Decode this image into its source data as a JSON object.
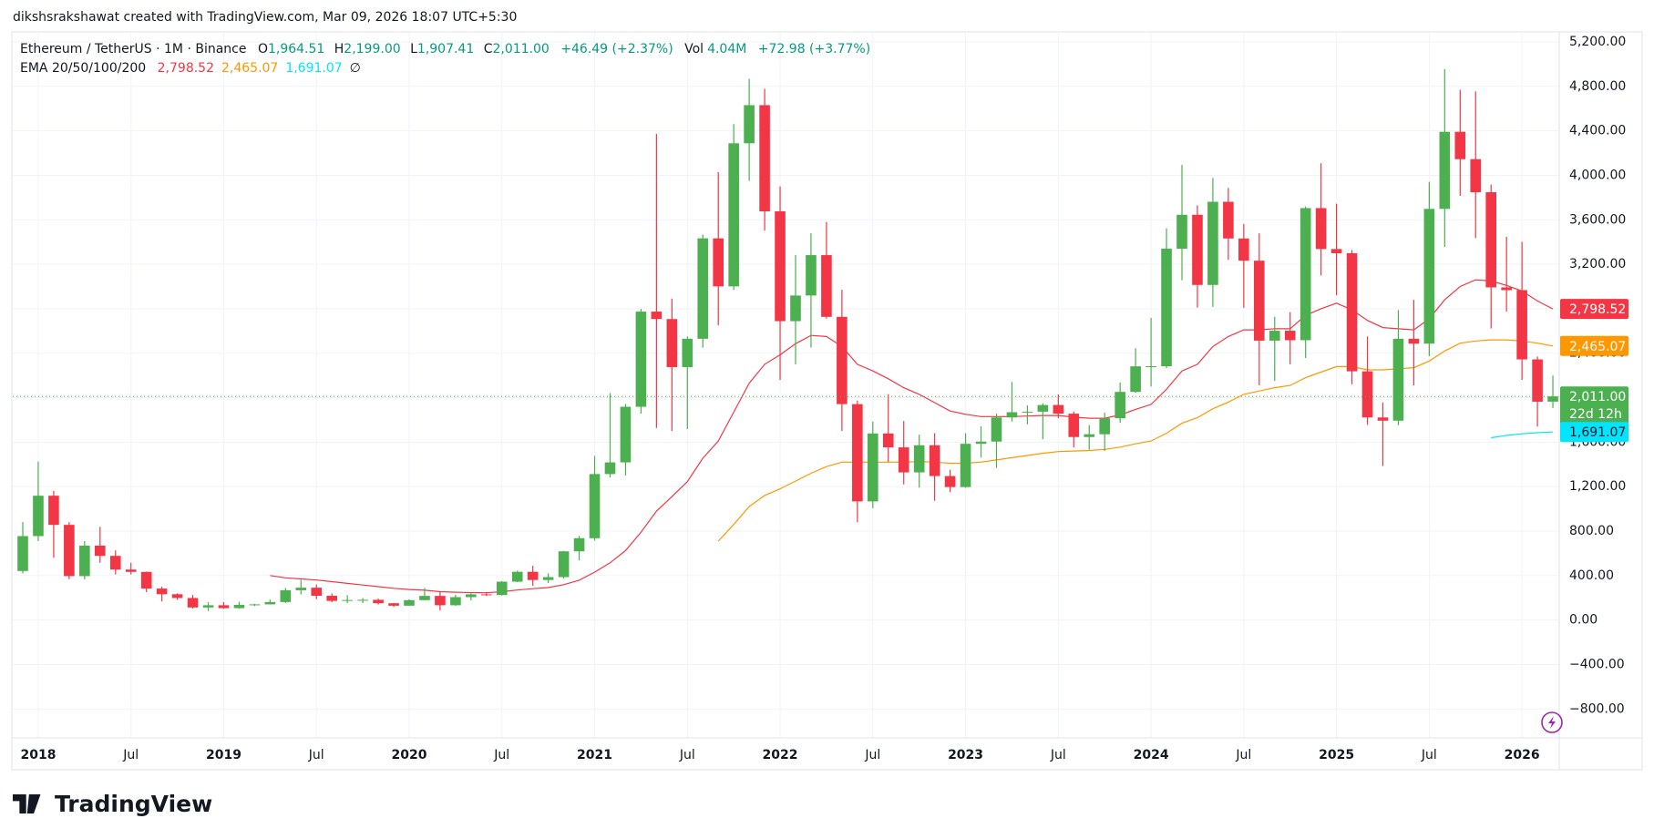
{
  "header": {
    "watermark": "dikshsrakshawat created with TradingView.com, Mar 09, 2026 18:07 UTC+5:30",
    "symbol": "Ethereum / TetherUS · 1M · Binance",
    "o_label": "O",
    "o": "1,964.51",
    "h_label": "H",
    "h": "2,199.00",
    "l_label": "L",
    "l": "1,907.41",
    "c_label": "C",
    "c": "2,011.00",
    "change": "+46.49 (+2.37%)",
    "vol_label": "Vol",
    "vol": "4.04M",
    "vol_change": "+72.98 (+3.77%)",
    "ema_label": "EMA 20/50/100/200",
    "ema200": "∅"
  },
  "footer": {
    "brand": "TradingView"
  },
  "chart_data": {
    "type": "candlestick",
    "categories": [
      "2017-12",
      "2018-01",
      "2018-02",
      "2018-03",
      "2018-04",
      "2018-05",
      "2018-06",
      "2018-07",
      "2018-08",
      "2018-09",
      "2018-10",
      "2018-11",
      "2018-12",
      "2019-01",
      "2019-02",
      "2019-03",
      "2019-04",
      "2019-05",
      "2019-06",
      "2019-07",
      "2019-08",
      "2019-09",
      "2019-10",
      "2019-11",
      "2019-12",
      "2020-01",
      "2020-02",
      "2020-03",
      "2020-04",
      "2020-05",
      "2020-06",
      "2020-07",
      "2020-08",
      "2020-09",
      "2020-10",
      "2020-11",
      "2020-12",
      "2021-01",
      "2021-02",
      "2021-03",
      "2021-04",
      "2021-05",
      "2021-06",
      "2021-07",
      "2021-08",
      "2021-09",
      "2021-10",
      "2021-11",
      "2021-12",
      "2022-01",
      "2022-02",
      "2022-03",
      "2022-04",
      "2022-05",
      "2022-06",
      "2022-07",
      "2022-08",
      "2022-09",
      "2022-10",
      "2022-11",
      "2022-12",
      "2023-01",
      "2023-02",
      "2023-03",
      "2023-04",
      "2023-05",
      "2023-06",
      "2023-07",
      "2023-08",
      "2023-09",
      "2023-10",
      "2023-11",
      "2023-12",
      "2024-01",
      "2024-02",
      "2024-03",
      "2024-04",
      "2024-05",
      "2024-06",
      "2024-07",
      "2024-08",
      "2024-09",
      "2024-10",
      "2024-11",
      "2024-12",
      "2025-01",
      "2025-02",
      "2025-03",
      "2025-04",
      "2025-05",
      "2025-06",
      "2025-07",
      "2025-08",
      "2025-09",
      "2025-10",
      "2025-11",
      "2025-12",
      "2026-01",
      "2026-02",
      "2026-03"
    ],
    "open": [
      441,
      755,
      1118,
      856,
      395,
      669,
      577,
      454,
      433,
      283,
      232,
      198,
      113,
      133,
      107,
      136,
      141,
      162,
      268,
      291,
      218,
      172,
      180,
      182,
      151,
      129,
      179,
      217,
      133,
      206,
      231,
      225,
      345,
      434,
      360,
      386,
      618,
      736,
      1313,
      1418,
      1918,
      2774,
      2707,
      2275,
      2530,
      3433,
      3001,
      4288,
      4631,
      3676,
      2688,
      2919,
      3282,
      2727,
      1942,
      1067,
      1678,
      1553,
      1328,
      1572,
      1295,
      1196,
      1585,
      1605,
      1822,
      1869,
      1874,
      1934,
      1856,
      1646,
      1671,
      1815,
      2052,
      2282,
      2283,
      3340,
      3645,
      3014,
      3762,
      3432,
      3232,
      2513,
      2602,
      2517,
      3705,
      3337,
      3299,
      2237,
      1822,
      1793,
      2530,
      2486,
      3698,
      4391,
      4145,
      3848,
      2992,
      2967,
      2344,
      1964.51
    ],
    "high": [
      881,
      1424,
      1161,
      880,
      710,
      838,
      626,
      516,
      436,
      300,
      240,
      226,
      160,
      161,
      165,
      146,
      184,
      288,
      361,
      319,
      239,
      223,
      198,
      193,
      154,
      187,
      288,
      253,
      227,
      249,
      253,
      349,
      445,
      488,
      420,
      622,
      757,
      1476,
      2041,
      1944,
      2798,
      4372,
      2891,
      2551,
      3467,
      4028,
      4460,
      4868,
      4778,
      3900,
      3283,
      3479,
      3581,
      2970,
      1974,
      1785,
      2031,
      1790,
      1667,
      1680,
      1352,
      1680,
      1742,
      1857,
      2141,
      1930,
      1950,
      2029,
      1876,
      1753,
      1865,
      2137,
      2445,
      2717,
      3522,
      4093,
      3730,
      3977,
      3887,
      3562,
      3478,
      2728,
      2769,
      3720,
      4108,
      3744,
      3328,
      2550,
      1957,
      2788,
      2880,
      3941,
      4956,
      4769,
      4755,
      3917,
      3447,
      3402,
      2370,
      2199
    ],
    "low": [
      420,
      710,
      560,
      367,
      365,
      515,
      410,
      410,
      250,
      167,
      182,
      102,
      81,
      100,
      101,
      125,
      140,
      153,
      230,
      188,
      160,
      152,
      151,
      140,
      117,
      127,
      178,
      86,
      128,
      176,
      216,
      221,
      340,
      308,
      332,
      373,
      536,
      714,
      1282,
      1300,
      1857,
      1728,
      1700,
      1718,
      2450,
      2651,
      2968,
      3950,
      3503,
      2159,
      2300,
      2451,
      2711,
      1700,
      880,
      1006,
      1422,
      1220,
      1190,
      1073,
      1150,
      1190,
      1461,
      1368,
      1785,
      1760,
      1626,
      1815,
      1551,
      1532,
      1521,
      1774,
      2044,
      2100,
      2265,
      3056,
      2810,
      2817,
      3240,
      2808,
      2111,
      2150,
      2300,
      2357,
      3100,
      2920,
      2120,
      1755,
      1385,
      1752,
      2111,
      2373,
      3355,
      3815,
      3435,
      2623,
      2775,
      2160,
      1740,
      1907.41
    ],
    "close": [
      755,
      1118,
      856,
      395,
      669,
      577,
      454,
      433,
      283,
      232,
      198,
      113,
      133,
      107,
      136,
      141,
      162,
      268,
      291,
      218,
      172,
      180,
      182,
      151,
      129,
      179,
      217,
      133,
      206,
      231,
      225,
      345,
      434,
      360,
      386,
      618,
      736,
      1313,
      1418,
      1918,
      2774,
      2707,
      2275,
      2530,
      3433,
      3001,
      4288,
      4631,
      3676,
      2688,
      2919,
      3282,
      2727,
      1942,
      1067,
      1678,
      1553,
      1328,
      1572,
      1295,
      1196,
      1585,
      1605,
      1822,
      1869,
      1874,
      1934,
      1856,
      1646,
      1671,
      1815,
      2052,
      2282,
      2283,
      3340,
      3645,
      3014,
      3762,
      3432,
      3232,
      2513,
      2602,
      2517,
      3705,
      3337,
      3299,
      2237,
      1822,
      1793,
      2530,
      2486,
      3698,
      4391,
      4145,
      3848,
      2992,
      2967,
      2344,
      1964,
      2011
    ],
    "up_color": "#4caf50",
    "down_color": "#f23645",
    "last_price": {
      "label": "2,011.00",
      "countdown": "22d 12h",
      "color": "#4caf50"
    },
    "lines": [
      {
        "name": "EMA 20",
        "color": "#f23645",
        "last_label": "2,798.52",
        "values": [
          null,
          null,
          null,
          null,
          null,
          null,
          null,
          null,
          null,
          null,
          null,
          null,
          null,
          null,
          null,
          null,
          400,
          380,
          370,
          360,
          345,
          330,
          315,
          300,
          285,
          275,
          268,
          255,
          250,
          247,
          245,
          255,
          270,
          282,
          292,
          318,
          358,
          430,
          515,
          625,
          790,
          980,
          1110,
          1245,
          1455,
          1610,
          1870,
          2130,
          2300,
          2385,
          2485,
          2560,
          2550,
          2460,
          2300,
          2240,
          2170,
          2090,
          2030,
          1955,
          1880,
          1850,
          1830,
          1830,
          1830,
          1835,
          1840,
          1840,
          1825,
          1815,
          1815,
          1845,
          1895,
          1940,
          2075,
          2240,
          2300,
          2460,
          2550,
          2610,
          2610,
          2620,
          2620,
          2740,
          2800,
          2850,
          2790,
          2695,
          2630,
          2620,
          2610,
          2710,
          2880,
          3000,
          3060,
          3050,
          3010,
          2960,
          2870,
          2798.52
        ]
      },
      {
        "name": "EMA 50",
        "color": "#ff9800",
        "last_label": "2,465.07",
        "values": [
          null,
          null,
          null,
          null,
          null,
          null,
          null,
          null,
          null,
          null,
          null,
          null,
          null,
          null,
          null,
          null,
          null,
          null,
          null,
          null,
          null,
          null,
          null,
          null,
          null,
          null,
          null,
          null,
          null,
          null,
          null,
          null,
          null,
          null,
          null,
          null,
          null,
          null,
          null,
          null,
          null,
          null,
          null,
          null,
          null,
          710,
          860,
          1020,
          1120,
          1180,
          1250,
          1320,
          1380,
          1420,
          1420,
          1420,
          1420,
          1420,
          1425,
          1420,
          1410,
          1410,
          1420,
          1440,
          1460,
          1480,
          1500,
          1515,
          1520,
          1525,
          1535,
          1555,
          1585,
          1610,
          1680,
          1770,
          1820,
          1900,
          1960,
          2030,
          2060,
          2090,
          2110,
          2180,
          2230,
          2280,
          2280,
          2250,
          2250,
          2260,
          2270,
          2330,
          2420,
          2490,
          2510,
          2520,
          2520,
          2510,
          2490,
          2465.07
        ]
      },
      {
        "name": "EMA 100",
        "color": "#00e5ff",
        "last_label": "1,691.07",
        "values": [
          null,
          null,
          null,
          null,
          null,
          null,
          null,
          null,
          null,
          null,
          null,
          null,
          null,
          null,
          null,
          null,
          null,
          null,
          null,
          null,
          null,
          null,
          null,
          null,
          null,
          null,
          null,
          null,
          null,
          null,
          null,
          null,
          null,
          null,
          null,
          null,
          null,
          null,
          null,
          null,
          null,
          null,
          null,
          null,
          null,
          null,
          null,
          null,
          null,
          null,
          null,
          null,
          null,
          null,
          null,
          null,
          null,
          null,
          null,
          null,
          null,
          null,
          null,
          null,
          null,
          null,
          null,
          null,
          null,
          null,
          null,
          null,
          null,
          null,
          null,
          null,
          null,
          null,
          null,
          null,
          null,
          null,
          null,
          null,
          null,
          null,
          null,
          null,
          null,
          null,
          null,
          null,
          null,
          null,
          null,
          1640,
          1660,
          1675,
          1685,
          1691.07
        ]
      }
    ],
    "ylim": [
      -1060,
      5290
    ],
    "yticks": [
      {
        "value": 5200,
        "label": "5,200.00"
      },
      {
        "value": 4800,
        "label": "4,800.00"
      },
      {
        "value": 4400,
        "label": "4,400.00"
      },
      {
        "value": 4000,
        "label": "4,000.00"
      },
      {
        "value": 3600,
        "label": "3,600.00"
      },
      {
        "value": 3200,
        "label": "3,200.00"
      },
      {
        "value": 2800,
        "label": "2,800.00"
      },
      {
        "value": 2400,
        "label": "2,400.00"
      },
      {
        "value": 2000,
        "label": "2,000.00"
      },
      {
        "value": 1600,
        "label": "1,600.00"
      },
      {
        "value": 1200,
        "label": "1,200.00"
      },
      {
        "value": 800,
        "label": "800.00"
      },
      {
        "value": 400,
        "label": "400.00"
      },
      {
        "value": 0,
        "label": "0.00"
      },
      {
        "value": -400,
        "label": "−400.00"
      },
      {
        "value": -800,
        "label": "−800.00"
      }
    ],
    "xticks": [
      {
        "value": "2018-01",
        "label": "2018"
      },
      {
        "value": "2018-07",
        "label": "Jul"
      },
      {
        "value": "2019-01",
        "label": "2019"
      },
      {
        "value": "2019-07",
        "label": "Jul"
      },
      {
        "value": "2020-01",
        "label": "2020"
      },
      {
        "value": "2020-07",
        "label": "Jul"
      },
      {
        "value": "2021-01",
        "label": "2021"
      },
      {
        "value": "2021-07",
        "label": "Jul"
      },
      {
        "value": "2022-01",
        "label": "2022"
      },
      {
        "value": "2022-07",
        "label": "Jul"
      },
      {
        "value": "2023-01",
        "label": "2023"
      },
      {
        "value": "2023-07",
        "label": "Jul"
      },
      {
        "value": "2024-01",
        "label": "2024"
      },
      {
        "value": "2024-07",
        "label": "Jul"
      },
      {
        "value": "2025-01",
        "label": "2025"
      },
      {
        "value": "2025-07",
        "label": "Jul"
      },
      {
        "value": "2026-01",
        "label": "2026"
      }
    ],
    "grid": true
  }
}
